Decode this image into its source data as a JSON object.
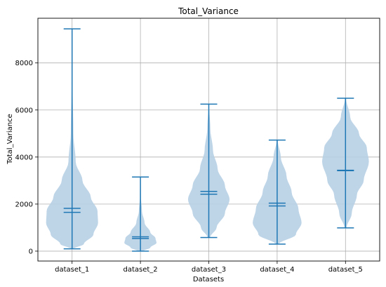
{
  "chart_data": {
    "type": "violin",
    "title": "Total_Variance",
    "xlabel": "Datasets",
    "ylabel": "Total_Variance",
    "ylim": [
      -420,
      9900
    ],
    "yticks": [
      0,
      2000,
      4000,
      6000,
      8000
    ],
    "ytick_labels": [
      "0",
      "2000",
      "4000",
      "6000",
      "8000"
    ],
    "grid": true,
    "violin_color": "#1f77b4",
    "violin_fill": "#b7d0e6",
    "categories": [
      "dataset_1",
      "dataset_2",
      "dataset_3",
      "dataset_4",
      "dataset_5"
    ],
    "violins": [
      {
        "name": "dataset_1",
        "min": 100,
        "max": 9450,
        "median": 1650,
        "mean": 1820,
        "profile": [
          [
            100,
            0.05
          ],
          [
            300,
            0.45
          ],
          [
            700,
            0.82
          ],
          [
            1200,
            1.0
          ],
          [
            1700,
            0.98
          ],
          [
            2300,
            0.72
          ],
          [
            3000,
            0.4
          ],
          [
            3800,
            0.14
          ],
          [
            5000,
            0.05
          ],
          [
            7000,
            0.02
          ],
          [
            9450,
            0.01
          ]
        ]
      },
      {
        "name": "dataset_2",
        "min": 0,
        "max": 3150,
        "median": 540,
        "mean": 610,
        "profile": [
          [
            0,
            0.1
          ],
          [
            150,
            0.38
          ],
          [
            350,
            0.62
          ],
          [
            550,
            0.58
          ],
          [
            800,
            0.38
          ],
          [
            1200,
            0.16
          ],
          [
            1700,
            0.06
          ],
          [
            2300,
            0.02
          ],
          [
            3150,
            0.01
          ]
        ]
      },
      {
        "name": "dataset_3",
        "min": 580,
        "max": 6250,
        "median": 2420,
        "mean": 2540,
        "profile": [
          [
            580,
            0.05
          ],
          [
            1000,
            0.3
          ],
          [
            1600,
            0.62
          ],
          [
            2200,
            0.8
          ],
          [
            2800,
            0.62
          ],
          [
            3500,
            0.34
          ],
          [
            4300,
            0.16
          ],
          [
            5200,
            0.06
          ],
          [
            6250,
            0.01
          ]
        ]
      },
      {
        "name": "dataset_4",
        "min": 300,
        "max": 4720,
        "median": 1920,
        "mean": 2040,
        "profile": [
          [
            300,
            0.06
          ],
          [
            700,
            0.72
          ],
          [
            1200,
            0.94
          ],
          [
            1800,
            0.82
          ],
          [
            2500,
            0.56
          ],
          [
            3200,
            0.36
          ],
          [
            4000,
            0.14
          ],
          [
            4720,
            0.02
          ]
        ]
      },
      {
        "name": "dataset_5",
        "min": 990,
        "max": 6500,
        "median": 3420,
        "mean": 3440,
        "profile": [
          [
            990,
            0.04
          ],
          [
            1600,
            0.24
          ],
          [
            2400,
            0.44
          ],
          [
            3000,
            0.7
          ],
          [
            3800,
            0.9
          ],
          [
            4400,
            0.82
          ],
          [
            5000,
            0.52
          ],
          [
            5700,
            0.18
          ],
          [
            6500,
            0.02
          ]
        ]
      }
    ]
  }
}
